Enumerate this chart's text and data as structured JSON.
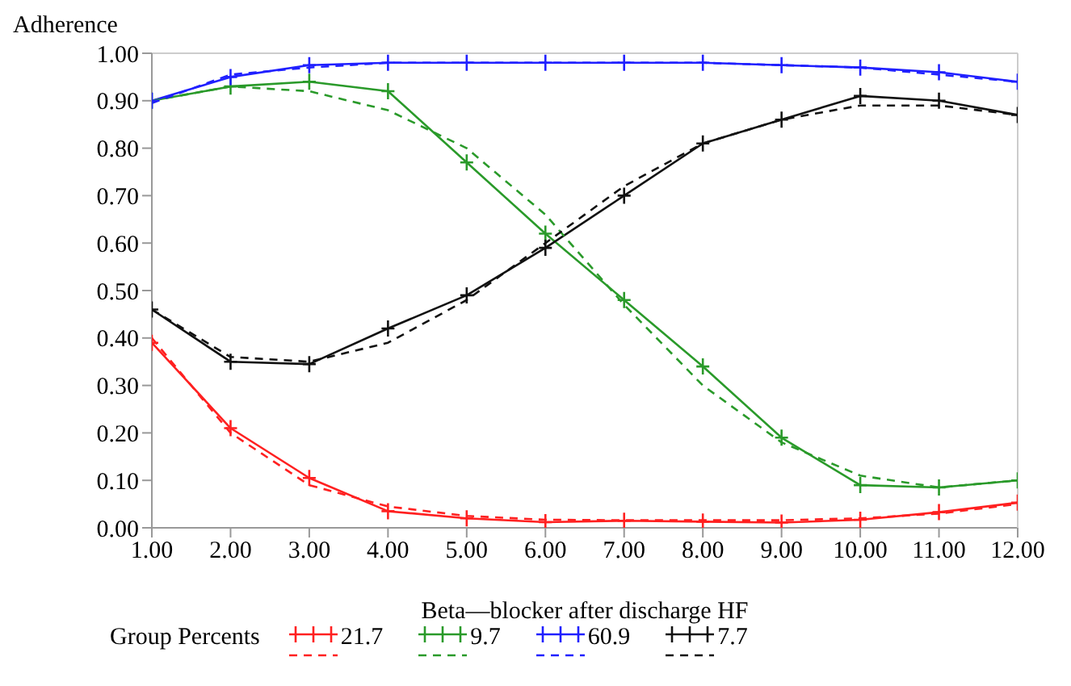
{
  "chart_data": {
    "type": "line",
    "ylabel": "Adherence",
    "xlabel": "Beta—blocker after discharge HF",
    "legend_title": "Group Percents",
    "legend": "bottom",
    "grid": false,
    "x": [
      1,
      2,
      3,
      4,
      5,
      6,
      7,
      8,
      9,
      10,
      11,
      12
    ],
    "xlim": [
      1,
      12
    ],
    "xticks": [
      {
        "value": 1,
        "label": "1.00"
      },
      {
        "value": 2,
        "label": "2.00"
      },
      {
        "value": 3,
        "label": "3.00"
      },
      {
        "value": 4,
        "label": "4.00"
      },
      {
        "value": 5,
        "label": "5.00"
      },
      {
        "value": 6,
        "label": "6.00"
      },
      {
        "value": 7,
        "label": "7.00"
      },
      {
        "value": 8,
        "label": "8.00"
      },
      {
        "value": 9,
        "label": "9.00"
      },
      {
        "value": 10,
        "label": "10.00"
      },
      {
        "value": 11,
        "label": "11.00"
      },
      {
        "value": 12,
        "label": "12.00"
      }
    ],
    "ylim": [
      0,
      1
    ],
    "yticks": [
      {
        "value": 0,
        "label": "0.00"
      },
      {
        "value": 0.1,
        "label": "0.10"
      },
      {
        "value": 0.2,
        "label": "0.20"
      },
      {
        "value": 0.3,
        "label": "0.30"
      },
      {
        "value": 0.4,
        "label": "0.40"
      },
      {
        "value": 0.5,
        "label": "0.50"
      },
      {
        "value": 0.6,
        "label": "0.60"
      },
      {
        "value": 0.7,
        "label": "0.70"
      },
      {
        "value": 0.8,
        "label": "0.80"
      },
      {
        "value": 0.9,
        "label": "0.90"
      },
      {
        "value": 1,
        "label": "1.00"
      }
    ],
    "series": [
      {
        "name": "21.7",
        "color": "#ff2020",
        "marker": "cross",
        "line_style": "solid",
        "values": [
          0.39,
          0.21,
          0.105,
          0.035,
          0.02,
          0.012,
          0.015,
          0.013,
          0.011,
          0.017,
          0.033,
          0.053
        ]
      },
      {
        "name": "9.7",
        "color": "#2a9a2a",
        "marker": "cross",
        "line_style": "solid",
        "values": [
          0.9,
          0.93,
          0.94,
          0.92,
          0.77,
          0.62,
          0.48,
          0.34,
          0.19,
          0.09,
          0.085,
          0.1
        ]
      },
      {
        "name": "60.9",
        "color": "#2020ff",
        "marker": "cross",
        "line_style": "solid",
        "values": [
          0.9,
          0.95,
          0.975,
          0.98,
          0.98,
          0.98,
          0.98,
          0.98,
          0.975,
          0.97,
          0.96,
          0.94
        ]
      },
      {
        "name": "7.7",
        "color": "#111111",
        "marker": "cross",
        "line_style": "solid",
        "values": [
          0.46,
          0.35,
          0.345,
          0.42,
          0.49,
          0.59,
          0.7,
          0.81,
          0.86,
          0.91,
          0.9,
          0.87
        ]
      },
      {
        "color": "#ff2020",
        "marker": "none",
        "line_style": "dashed",
        "values": [
          0.4,
          0.2,
          0.09,
          0.045,
          0.025,
          0.017,
          0.016,
          0.016,
          0.016,
          0.02,
          0.03,
          0.05
        ]
      },
      {
        "color": "#2a9a2a",
        "marker": "none",
        "line_style": "dashed",
        "values": [
          0.9,
          0.93,
          0.92,
          0.88,
          0.8,
          0.66,
          0.47,
          0.3,
          0.18,
          0.11,
          0.085,
          0.1
        ]
      },
      {
        "color": "#2020ff",
        "marker": "none",
        "line_style": "dashed",
        "values": [
          0.895,
          0.955,
          0.97,
          0.98,
          0.98,
          0.98,
          0.98,
          0.98,
          0.975,
          0.97,
          0.955,
          0.94
        ]
      },
      {
        "color": "#111111",
        "marker": "none",
        "line_style": "dashed",
        "values": [
          0.46,
          0.36,
          0.35,
          0.39,
          0.48,
          0.6,
          0.72,
          0.81,
          0.86,
          0.89,
          0.89,
          0.87
        ]
      }
    ]
  }
}
